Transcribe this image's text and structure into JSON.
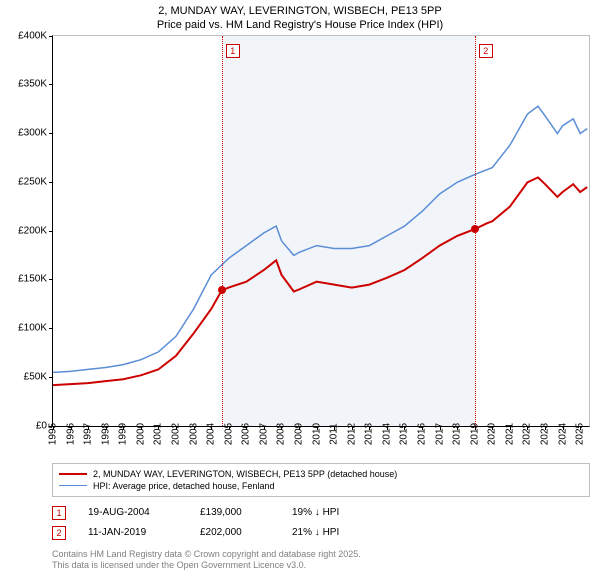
{
  "title_line1": "2, MUNDAY WAY, LEVERINGTON, WISBECH, PE13 5PP",
  "title_line2": "Price paid vs. HM Land Registry's House Price Index (HPI)",
  "chart": {
    "type": "line",
    "xlim": [
      1995,
      2025.5
    ],
    "ylim": [
      0,
      400000
    ],
    "ytick_step": 50000,
    "yticks": [
      "£0",
      "£50K",
      "£100K",
      "£150K",
      "£200K",
      "£250K",
      "£300K",
      "£350K",
      "£400K"
    ],
    "xticks": [
      1995,
      1996,
      1997,
      1998,
      1999,
      2000,
      2001,
      2002,
      2003,
      2004,
      2005,
      2006,
      2007,
      2008,
      2009,
      2010,
      2011,
      2012,
      2013,
      2014,
      2015,
      2016,
      2017,
      2018,
      2019,
      2020,
      2021,
      2022,
      2023,
      2024,
      2025
    ],
    "background_color": "#ffffff",
    "band_color": "#f1f5fa",
    "band_start": 2004.6,
    "band_end": 2019.0,
    "grid_color": "#bfbfbf",
    "series": [
      {
        "name": "price_paid",
        "color": "#cc0000",
        "width": 2,
        "label": "2, MUNDAY WAY, LEVERINGTON, WISBECH, PE13 5PP (detached house)",
        "points": [
          [
            1995,
            42000
          ],
          [
            1996,
            43000
          ],
          [
            1997,
            44000
          ],
          [
            1998,
            46000
          ],
          [
            1999,
            48000
          ],
          [
            2000,
            52000
          ],
          [
            2001,
            58000
          ],
          [
            2002,
            72000
          ],
          [
            2003,
            95000
          ],
          [
            2004,
            120000
          ],
          [
            2004.6,
            139000
          ],
          [
            2005,
            142000
          ],
          [
            2006,
            148000
          ],
          [
            2007,
            160000
          ],
          [
            2007.7,
            170000
          ],
          [
            2008,
            155000
          ],
          [
            2008.7,
            138000
          ],
          [
            2009,
            140000
          ],
          [
            2010,
            148000
          ],
          [
            2011,
            145000
          ],
          [
            2012,
            142000
          ],
          [
            2013,
            145000
          ],
          [
            2014,
            152000
          ],
          [
            2015,
            160000
          ],
          [
            2016,
            172000
          ],
          [
            2017,
            185000
          ],
          [
            2018,
            195000
          ],
          [
            2019,
            202000
          ],
          [
            2019.7,
            208000
          ],
          [
            2020,
            210000
          ],
          [
            2021,
            225000
          ],
          [
            2022,
            250000
          ],
          [
            2022.6,
            255000
          ],
          [
            2023,
            248000
          ],
          [
            2023.7,
            235000
          ],
          [
            2024,
            240000
          ],
          [
            2024.6,
            248000
          ],
          [
            2025,
            240000
          ],
          [
            2025.4,
            245000
          ]
        ]
      },
      {
        "name": "hpi",
        "color": "#5b8dd6",
        "width": 1.5,
        "label": "HPI: Average price, detached house, Fenland",
        "points": [
          [
            1995,
            55000
          ],
          [
            1996,
            56000
          ],
          [
            1997,
            58000
          ],
          [
            1998,
            60000
          ],
          [
            1999,
            63000
          ],
          [
            2000,
            68000
          ],
          [
            2001,
            76000
          ],
          [
            2002,
            92000
          ],
          [
            2003,
            120000
          ],
          [
            2004,
            155000
          ],
          [
            2005,
            172000
          ],
          [
            2006,
            185000
          ],
          [
            2007,
            198000
          ],
          [
            2007.7,
            205000
          ],
          [
            2008,
            190000
          ],
          [
            2008.7,
            175000
          ],
          [
            2009,
            178000
          ],
          [
            2010,
            185000
          ],
          [
            2011,
            182000
          ],
          [
            2012,
            182000
          ],
          [
            2013,
            185000
          ],
          [
            2014,
            195000
          ],
          [
            2015,
            205000
          ],
          [
            2016,
            220000
          ],
          [
            2017,
            238000
          ],
          [
            2018,
            250000
          ],
          [
            2019,
            258000
          ],
          [
            2020,
            265000
          ],
          [
            2021,
            288000
          ],
          [
            2022,
            320000
          ],
          [
            2022.6,
            328000
          ],
          [
            2023,
            318000
          ],
          [
            2023.7,
            300000
          ],
          [
            2024,
            308000
          ],
          [
            2024.6,
            315000
          ],
          [
            2025,
            300000
          ],
          [
            2025.4,
            305000
          ]
        ]
      }
    ],
    "markers": [
      {
        "n": "1",
        "x": 2004.6,
        "y": 139000,
        "color": "#cc0000"
      },
      {
        "n": "2",
        "x": 2019.0,
        "y": 202000,
        "color": "#cc0000"
      }
    ]
  },
  "legend": {
    "items": [
      {
        "color": "#cc0000",
        "width": 2,
        "label_key": "chart.series.0.label"
      },
      {
        "color": "#5b8dd6",
        "width": 1.5,
        "label_key": "chart.series.1.label"
      }
    ]
  },
  "sales": [
    {
      "n": "1",
      "color": "#cc0000",
      "date": "19-AUG-2004",
      "price": "£139,000",
      "diff": "19% ↓ HPI"
    },
    {
      "n": "2",
      "color": "#cc0000",
      "date": "11-JAN-2019",
      "price": "£202,000",
      "diff": "21% ↓ HPI"
    }
  ],
  "footer_line1": "Contains HM Land Registry data © Crown copyright and database right 2025.",
  "footer_line2": "This data is licensed under the Open Government Licence v3.0."
}
